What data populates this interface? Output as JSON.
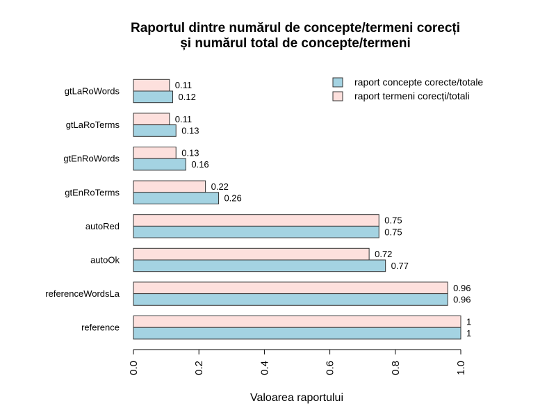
{
  "chart_data": {
    "type": "bar",
    "orientation": "horizontal",
    "title_lines": [
      "Raportul dintre numărul de concepte/termeni corecți",
      "și numărul total de concepte/termeni"
    ],
    "xlabel": "Valoarea raportului",
    "ylabel": "",
    "xlim": [
      0,
      1
    ],
    "x_ticks": [
      "0.0",
      "0.2",
      "0.4",
      "0.6",
      "0.8",
      "1.0"
    ],
    "grid": false,
    "legend_position": "top-right",
    "categories": [
      "reference",
      "referenceWordsLa",
      "autoOk",
      "autoRed",
      "gtEnRoTerms",
      "gtEnRoWords",
      "gtLaRoTerms",
      "gtLaRoWords"
    ],
    "series": [
      {
        "name": "raport concepte corecte/totale",
        "color": "#a4d3e2",
        "values": [
          1,
          0.96,
          0.77,
          0.75,
          0.26,
          0.16,
          0.13,
          0.12
        ],
        "labels": [
          "1",
          "0.96",
          "0.77",
          "0.75",
          "0.26",
          "0.16",
          "0.13",
          "0.12"
        ]
      },
      {
        "name": "raport termeni corecți/totali",
        "color": "#fde0dd",
        "values": [
          1,
          0.96,
          0.72,
          0.75,
          0.22,
          0.13,
          0.11,
          0.11
        ],
        "labels": [
          "1",
          "0.96",
          "0.72",
          "0.75",
          "0.22",
          "0.13",
          "0.11",
          "0.11"
        ]
      }
    ]
  }
}
